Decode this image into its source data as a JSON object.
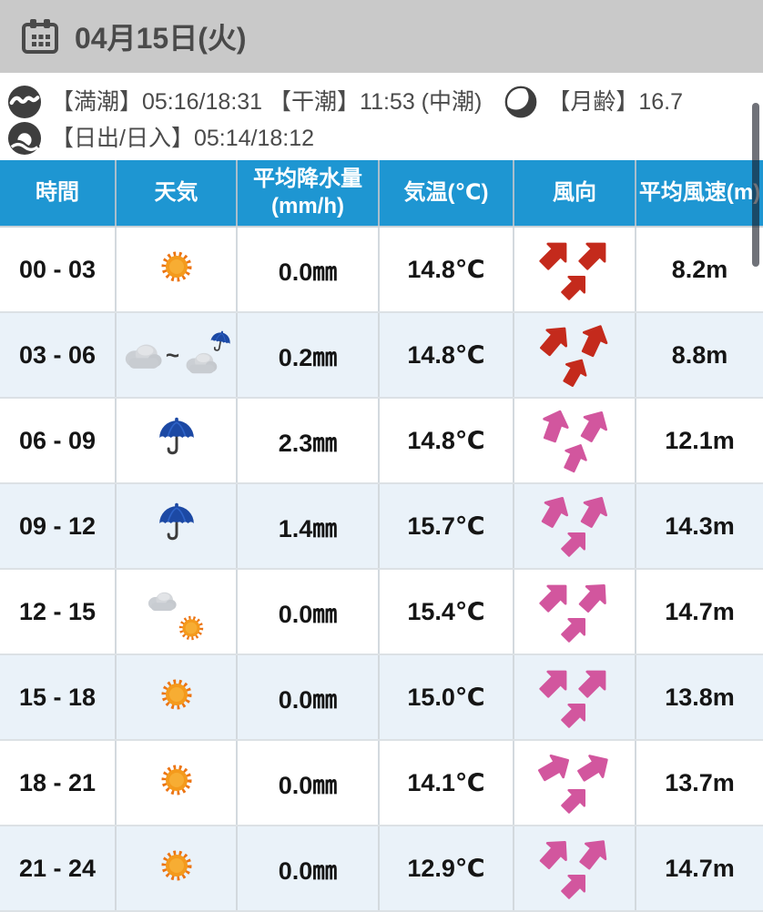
{
  "top_bar": {
    "date": "04月15日(火)",
    "icon": "calendar-icon"
  },
  "info": {
    "tide_line": {
      "icon": "wave-icon",
      "text": "【満潮】05:16/18:31 【干潮】11:53  (中潮)",
      "moon_icon": "moon-icon",
      "moon_text": "【月齢】16.7"
    },
    "sun_line": {
      "icon": "sunrise-icon",
      "text": "【日出/日入】05:14/18:12"
    }
  },
  "glyphs": {
    "weather_transition": "~"
  },
  "colors": {
    "top_bar": "#C9C9C9",
    "header_blue": "#1E96D2",
    "row_alt": "#EAF2F9",
    "arrow_red": "#C42A1C",
    "arrow_pink": "#D2569E"
  },
  "table": {
    "columns": [
      {
        "key": "time",
        "label": "時間"
      },
      {
        "key": "weather",
        "label": "天気"
      },
      {
        "key": "precip",
        "label": "平均降水量",
        "label2": "(mm/h)"
      },
      {
        "key": "temp",
        "label": "気温(℃)"
      },
      {
        "key": "wind",
        "label": "風向"
      },
      {
        "key": "speed",
        "label": "平均風速(m)"
      }
    ],
    "rows": [
      {
        "time": "00 - 03",
        "weather": "sunny",
        "precip": "0.0㎜",
        "temp": "14.8℃",
        "wind_color": "red",
        "wind_dirs": [
          45,
          45,
          45
        ],
        "speed": "8.2m"
      },
      {
        "time": "03 - 06",
        "weather": "cloudy-then-rain",
        "precip": "0.2㎜",
        "temp": "14.8℃",
        "wind_color": "red",
        "wind_dirs": [
          40,
          25,
          30
        ],
        "speed": "8.8m"
      },
      {
        "time": "06 - 09",
        "weather": "rain",
        "precip": "2.3㎜",
        "temp": "14.8℃",
        "wind_color": "pink",
        "wind_dirs": [
          20,
          30,
          25
        ],
        "speed": "12.1m"
      },
      {
        "time": "09 - 12",
        "weather": "rain",
        "precip": "1.4㎜",
        "temp": "15.7℃",
        "wind_color": "pink",
        "wind_dirs": [
          30,
          30,
          45
        ],
        "speed": "14.3m"
      },
      {
        "time": "12 - 15",
        "weather": "partly-cloudy",
        "precip": "0.0㎜",
        "temp": "15.4℃",
        "wind_color": "pink",
        "wind_dirs": [
          45,
          42,
          45
        ],
        "speed": "14.7m"
      },
      {
        "time": "15 - 18",
        "weather": "sunny",
        "precip": "0.0㎜",
        "temp": "15.0℃",
        "wind_color": "pink",
        "wind_dirs": [
          45,
          45,
          45
        ],
        "speed": "13.8m"
      },
      {
        "time": "18 - 21",
        "weather": "sunny",
        "precip": "0.0㎜",
        "temp": "14.1℃",
        "wind_color": "pink",
        "wind_dirs": [
          60,
          58,
          45
        ],
        "speed": "13.7m"
      },
      {
        "time": "21 - 24",
        "weather": "sunny",
        "precip": "0.0㎜",
        "temp": "12.9℃",
        "wind_color": "pink",
        "wind_dirs": [
          42,
          38,
          45
        ],
        "speed": "14.7m"
      }
    ]
  }
}
